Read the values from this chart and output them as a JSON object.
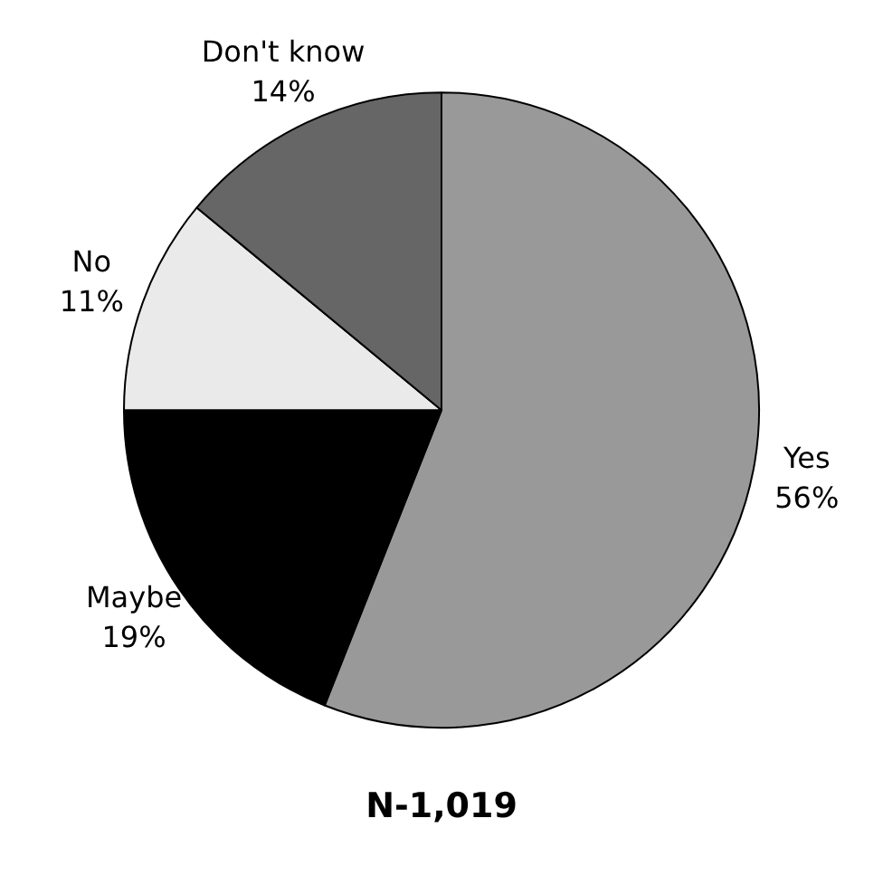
{
  "chart_data": {
    "type": "pie",
    "title": "N-1,019",
    "categories": [
      "Yes",
      "Maybe",
      "No",
      "Don't know"
    ],
    "values": [
      56,
      19,
      11,
      14
    ],
    "colors": [
      "#999999",
      "#000000",
      "#eaeaea",
      "#666666"
    ],
    "value_labels": [
      "56%",
      "19%",
      "11%",
      "14%"
    ],
    "legend": false
  }
}
